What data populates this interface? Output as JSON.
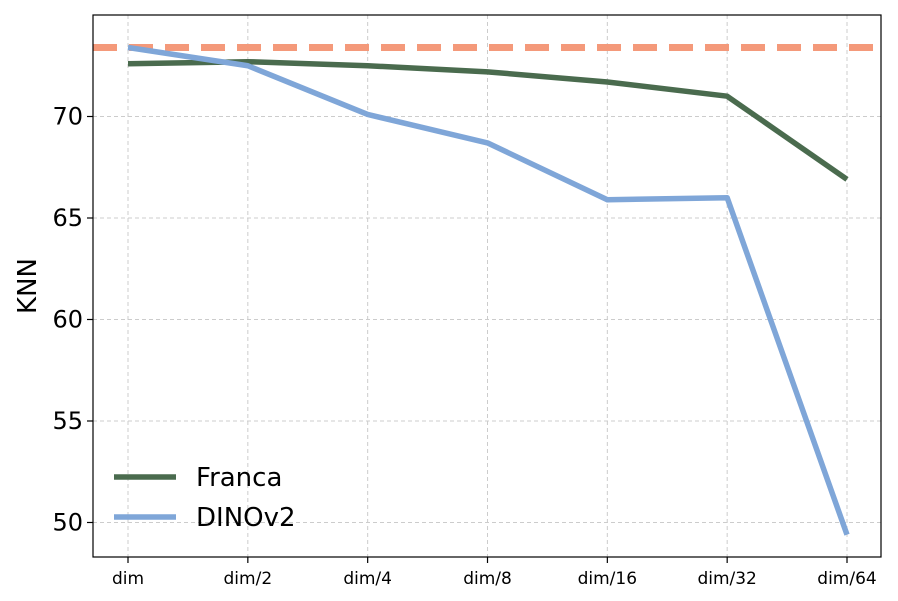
{
  "chart_data": {
    "type": "line",
    "categories": [
      "dim",
      "dim/2",
      "dim/4",
      "dim/8",
      "dim/16",
      "dim/32",
      "dim/64"
    ],
    "series": [
      {
        "name": "Franca",
        "color": "#4a6b4e",
        "values": [
          72.6,
          72.7,
          72.5,
          72.2,
          71.7,
          71.0,
          66.9
        ]
      },
      {
        "name": "DINOv2",
        "color": "#7fa6d8",
        "values": [
          73.4,
          72.5,
          70.1,
          68.7,
          65.9,
          66.0,
          49.4
        ]
      }
    ],
    "reference_line": {
      "value": 73.4,
      "color": "#f4997a",
      "style": "dashed"
    },
    "ylabel": "KNN",
    "xlabel": "",
    "ylim": [
      48.3,
      75.0
    ],
    "yticks": [
      50,
      55,
      60,
      65,
      70
    ],
    "grid": true,
    "legend_position": "lower-left"
  }
}
